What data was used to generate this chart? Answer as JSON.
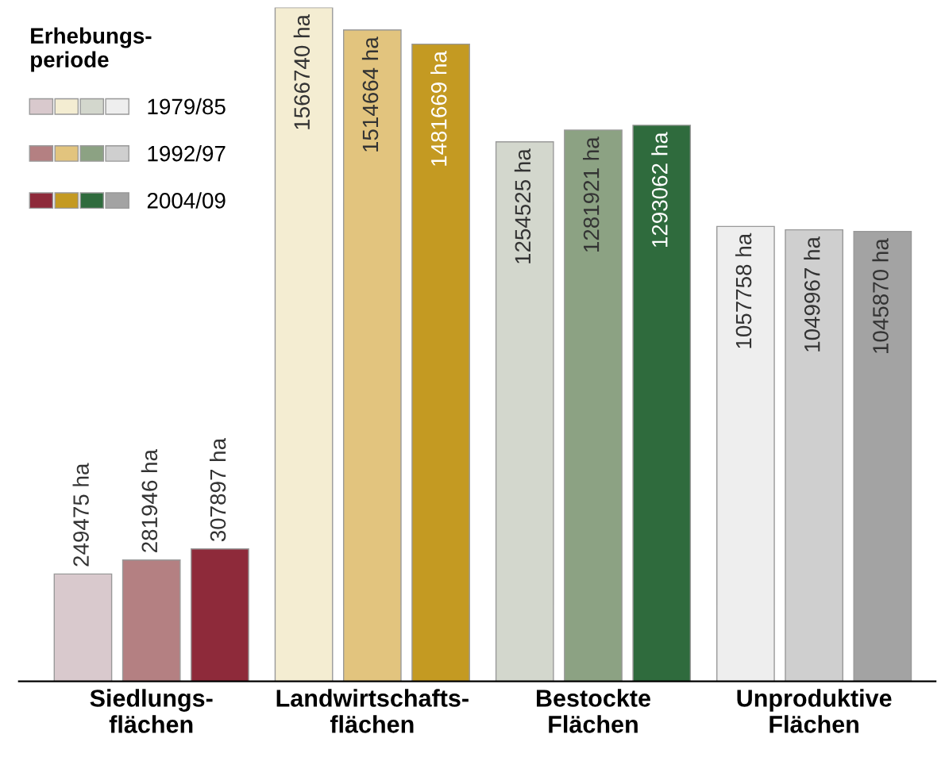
{
  "chart_data": {
    "type": "bar",
    "legend_title": "Erhebungs-\nperiode",
    "legend": "top left",
    "categories": [
      "Siedlungs-\nflächen",
      "Landwirtschafts-\nflächen",
      "Bestockte\nFlächen",
      "Unproduktive\nFlächen"
    ],
    "series": [
      {
        "name": "1979/85",
        "colors": [
          "#d9c9cd",
          "#f4edd2",
          "#d3d7cd",
          "#eeeeee"
        ],
        "values": [
          249475,
          1566740,
          1254525,
          1057758
        ],
        "value_labels": [
          "249475 ha",
          "1566740 ha",
          "1254525 ha",
          "1057758 ha"
        ]
      },
      {
        "name": "1992/97",
        "colors": [
          "#b48082",
          "#e2c47e",
          "#8ca283",
          "#cfcfcf"
        ],
        "values": [
          281946,
          1514664,
          1281921,
          1049967
        ],
        "value_labels": [
          "281946 ha",
          "1514664 ha",
          "1281921 ha",
          "1049967 ha"
        ]
      },
      {
        "name": "2004/09",
        "colors": [
          "#8e2a3a",
          "#c49a22",
          "#2f6b3d",
          "#a3a3a3"
        ],
        "values": [
          307897,
          1481669,
          1293062,
          1045870
        ],
        "value_labels": [
          "307897 ha",
          "1481669 ha",
          "1293062 ha",
          "1045870 ha"
        ]
      }
    ]
  }
}
